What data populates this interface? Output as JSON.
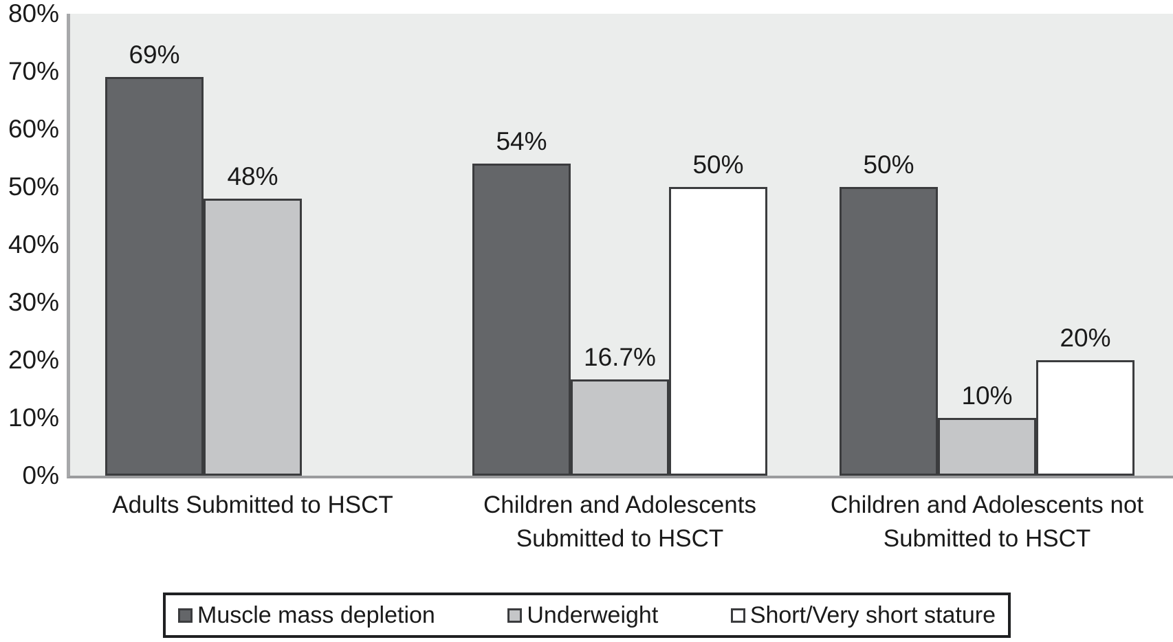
{
  "chart_data": {
    "type": "bar",
    "title": "",
    "xlabel": "",
    "ylabel": "",
    "categories": [
      "Adults Submitted to HSCT",
      "Children and Adolescents Submitted to HSCT",
      "Children and Adolescents not Submitted to HSCT"
    ],
    "category_label_lines": [
      [
        "Adults Submitted to HSCT"
      ],
      [
        "Children and Adolescents",
        "Submitted to HSCT"
      ],
      [
        "Children and Adolescents not",
        "Submitted to HSCT"
      ]
    ],
    "series": [
      {
        "name": "Muscle mass depletion",
        "values": [
          69,
          54,
          50
        ],
        "value_labels": [
          "69%",
          "54%",
          "50%"
        ],
        "fill": "#646669",
        "border": "#3b3c3e"
      },
      {
        "name": "Underweight",
        "values": [
          48,
          16.7,
          10
        ],
        "value_labels": [
          "48%",
          "16.7%",
          "10%"
        ],
        "fill": "#c5c6c8",
        "border": "#3b3c3e"
      },
      {
        "name": "Short/Very short stature",
        "values": [
          null,
          50,
          20
        ],
        "value_labels": [
          null,
          "50%",
          "20%"
        ],
        "fill": "#ffffff",
        "border": "#3b3c3e"
      }
    ],
    "y_axis": {
      "min": 0,
      "max": 80,
      "tick_step": 10,
      "tick_values": [
        0,
        10,
        20,
        30,
        40,
        50,
        60,
        70,
        80
      ],
      "tick_labels": [
        "0%",
        "10%",
        "20%",
        "30%",
        "40%",
        "50%",
        "60%",
        "70%",
        "80%"
      ]
    },
    "legend": {
      "position": "bottom",
      "entries": [
        "Muscle mass depletion",
        "Underweight",
        "Short/Very short stature"
      ],
      "border_color": "#1f2022",
      "background": "#ffffff"
    },
    "plot": {
      "background": "#ebedec",
      "y_axis_line_color": "#a7a8aa",
      "x_axis_line_color": "#9b9c9e",
      "grid": false
    },
    "text_color": "#1a1a1a"
  }
}
